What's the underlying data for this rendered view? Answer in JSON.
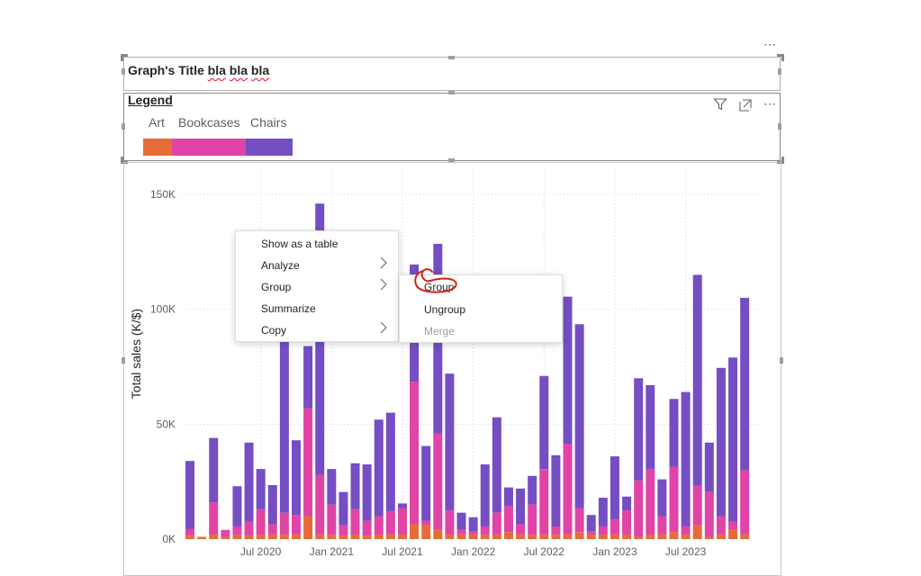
{
  "header": {
    "title_prefix": "Graph's Title ",
    "title_w1": "bla",
    "title_w2": "bla",
    "title_w3": "bla",
    "more_dots": "⋯"
  },
  "legend": {
    "heading": "Legend",
    "items": [
      {
        "label": "Art",
        "color": "#e66c37"
      },
      {
        "label": "Bookcases",
        "color": "#e044a7"
      },
      {
        "label": "Chairs",
        "color": "#744ec2"
      }
    ]
  },
  "visual_header": {
    "filter_icon": "filter-icon",
    "focus_icon": "focus-mode-icon",
    "more_icon": "more-options-icon"
  },
  "context_menu": {
    "items": [
      {
        "label": "Show as a table",
        "submenu": false
      },
      {
        "label": "Analyze",
        "submenu": true
      },
      {
        "label": "Group",
        "submenu": true
      },
      {
        "label": "Summarize",
        "submenu": false
      },
      {
        "label": "Copy",
        "submenu": true
      }
    ]
  },
  "submenu": {
    "items": [
      {
        "label": "Group",
        "enabled": true,
        "annotated": true
      },
      {
        "label": "Ungroup",
        "enabled": true
      },
      {
        "label": "Merge",
        "enabled": false
      }
    ],
    "annotation_color": "#d42020"
  },
  "chart_data": {
    "type": "bar",
    "stacked": true,
    "title": "",
    "xlabel": "",
    "ylabel": "Total sales (K/$)",
    "ylim": [
      0,
      150000
    ],
    "yticks": [
      {
        "value": 0,
        "label": "0K"
      },
      {
        "value": 50000,
        "label": "50K"
      },
      {
        "value": 100000,
        "label": "100K"
      },
      {
        "value": 150000,
        "label": "150K"
      }
    ],
    "xticks": [
      {
        "index": 6,
        "label": "Jul 2020"
      },
      {
        "index": 12,
        "label": "Jan 2021"
      },
      {
        "index": 18,
        "label": "Jul 2021"
      },
      {
        "index": 24,
        "label": "Jan 2022"
      },
      {
        "index": 30,
        "label": "Jul 2022"
      },
      {
        "index": 36,
        "label": "Jan 2023"
      },
      {
        "index": 42,
        "label": "Jul 2023"
      }
    ],
    "categories": [
      "Jan 2020",
      "Feb 2020",
      "Mar 2020",
      "Apr 2020",
      "May 2020",
      "Jun 2020",
      "Jul 2020",
      "Aug 2020",
      "Sep 2020",
      "Oct 2020",
      "Nov 2020",
      "Dec 2020",
      "Jan 2021",
      "Feb 2021",
      "Mar 2021",
      "Apr 2021",
      "May 2021",
      "Jun 2021",
      "Jul 2021",
      "Aug 2021",
      "Sep 2021",
      "Oct 2021",
      "Nov 2021",
      "Dec 2021",
      "Jan 2022",
      "Feb 2022",
      "Mar 2022",
      "Apr 2022",
      "May 2022",
      "Jun 2022",
      "Jul 2022",
      "Aug 2022",
      "Sep 2022",
      "Oct 2022",
      "Nov 2022",
      "Dec 2022",
      "Jan 2023",
      "Feb 2023",
      "Mar 2023",
      "Apr 2023",
      "May 2023",
      "Jun 2023",
      "Jul 2023",
      "Aug 2023",
      "Sep 2023",
      "Oct 2023",
      "Nov 2023",
      "Dec 2023"
    ],
    "series": [
      {
        "name": "Art",
        "color": "#e66c37",
        "values": [
          1500,
          1000,
          2000,
          1000,
          2000,
          1500,
          2000,
          2000,
          2000,
          2000,
          10000,
          2000,
          2000,
          1500,
          2000,
          1500,
          2000,
          2000,
          2000,
          6500,
          6000,
          4000,
          2000,
          2000,
          2000,
          2000,
          2000,
          3000,
          2000,
          2000,
          2000,
          2000,
          2000,
          3000,
          2000,
          2000,
          2000,
          2000,
          1000,
          2000,
          2000,
          3000,
          2000,
          6000,
          1000,
          2000,
          4000,
          2000
        ]
      },
      {
        "name": "Bookcases",
        "color": "#e044a7",
        "values": [
          3000,
          0,
          14000,
          3000,
          3500,
          6000,
          11000,
          4500,
          9500,
          8500,
          47000,
          26000,
          13000,
          4500,
          11000,
          6500,
          8000,
          10000,
          11500,
          62000,
          2000,
          42000,
          10500,
          2000,
          1500,
          3500,
          9500,
          11500,
          4500,
          13000,
          28500,
          3500,
          39500,
          10500,
          1500,
          3500,
          6500,
          10500,
          24500,
          28500,
          8000,
          28500,
          3500,
          17500,
          19500,
          8000,
          3500,
          28000
        ]
      },
      {
        "name": "Chairs",
        "color": "#744ec2",
        "values": [
          29500,
          0,
          28000,
          0,
          17500,
          34500,
          17500,
          17000,
          79000,
          32500,
          27000,
          118000,
          15500,
          14500,
          20000,
          24500,
          42000,
          43000,
          2000,
          51000,
          32500,
          82500,
          59500,
          7500,
          6000,
          27000,
          41500,
          8000,
          15500,
          12500,
          40500,
          31000,
          64000,
          80000,
          7000,
          12500,
          27500,
          6000,
          44500,
          36500,
          16000,
          29500,
          58500,
          91500,
          21500,
          64500,
          71500,
          75000
        ]
      }
    ]
  }
}
